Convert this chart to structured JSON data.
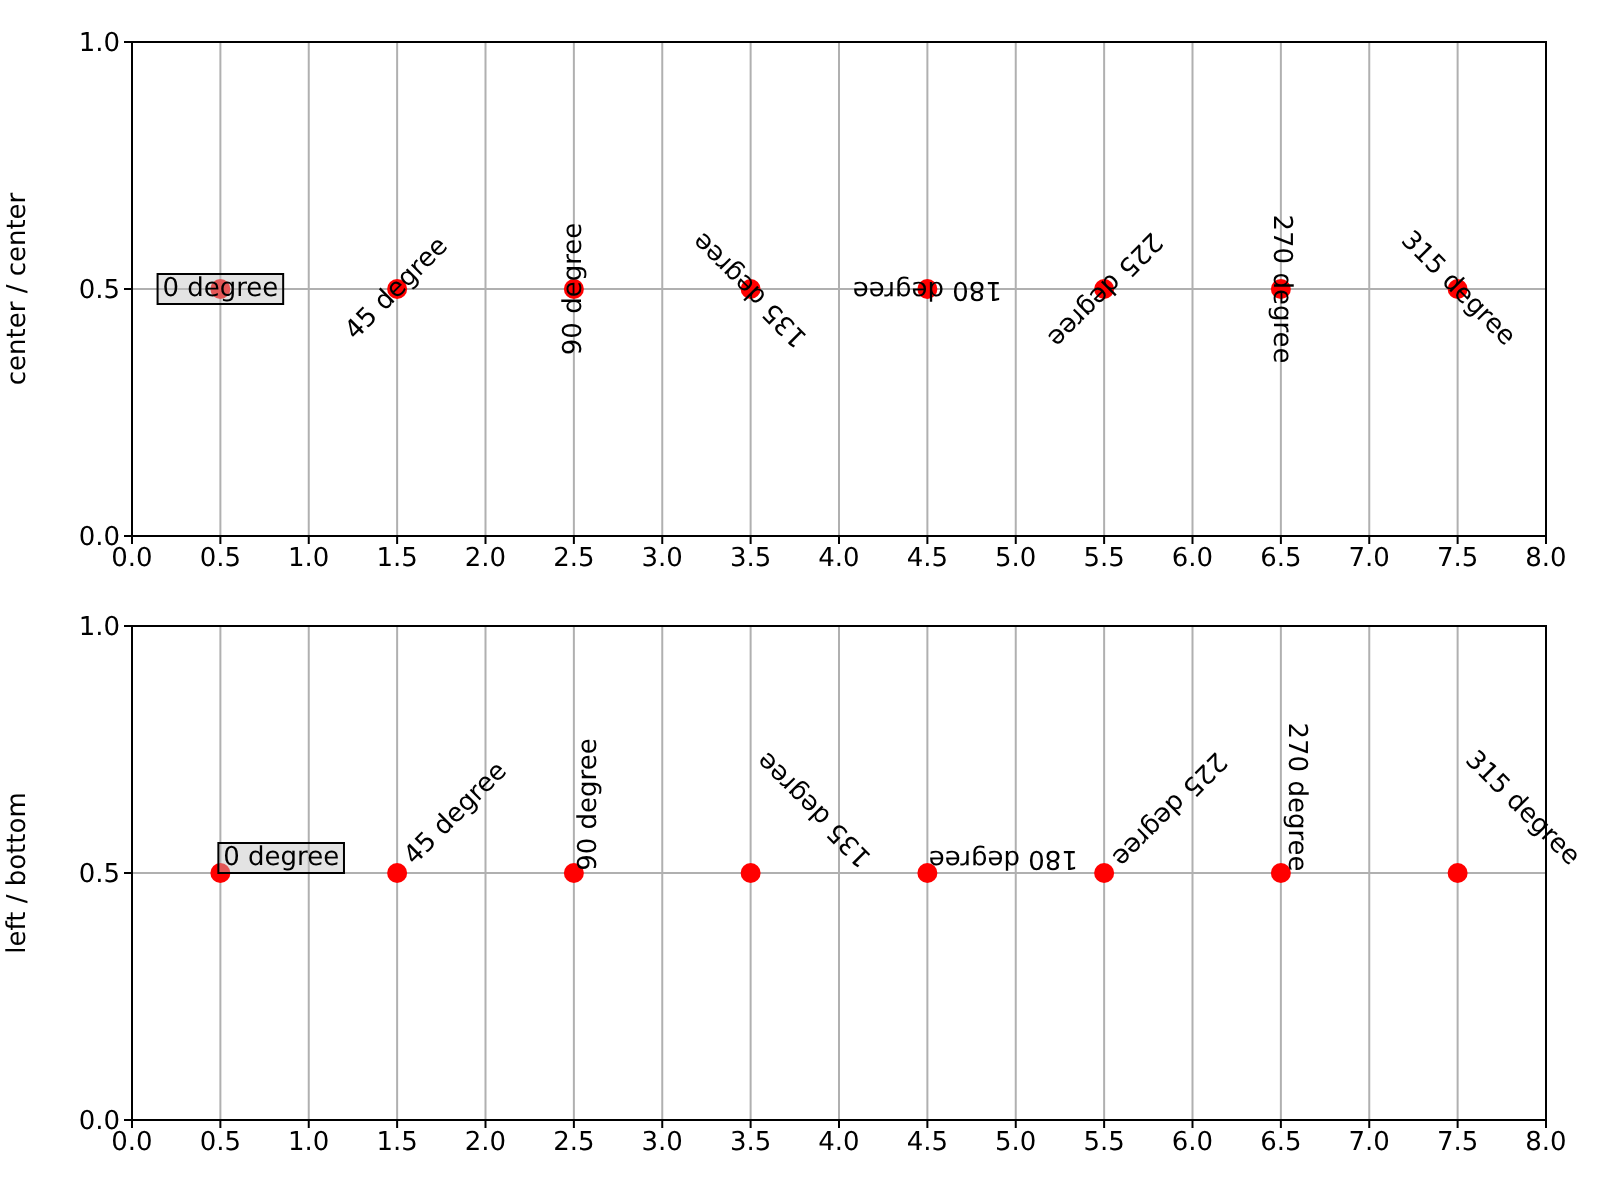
{
  "chart_data": [
    {
      "type": "scatter",
      "ylabel": "center / center",
      "x": [
        0.5,
        1.5,
        2.5,
        3.5,
        4.5,
        5.5,
        6.5,
        7.5
      ],
      "values": [
        0.5,
        0.5,
        0.5,
        0.5,
        0.5,
        0.5,
        0.5,
        0.5
      ],
      "color": "#ff0000",
      "marker": "circle",
      "grid": true,
      "xlim": [
        0,
        8
      ],
      "xticks": [
        {
          "value": 0,
          "label": "0.0"
        },
        {
          "value": 0.5,
          "label": "0.5"
        },
        {
          "value": 1,
          "label": "1.0"
        },
        {
          "value": 1.5,
          "label": "1.5"
        },
        {
          "value": 2,
          "label": "2.0"
        },
        {
          "value": 2.5,
          "label": "2.5"
        },
        {
          "value": 3,
          "label": "3.0"
        },
        {
          "value": 3.5,
          "label": "3.5"
        },
        {
          "value": 4,
          "label": "4.0"
        },
        {
          "value": 4.5,
          "label": "4.5"
        },
        {
          "value": 5,
          "label": "5.0"
        },
        {
          "value": 5.5,
          "label": "5.5"
        },
        {
          "value": 6,
          "label": "6.0"
        },
        {
          "value": 6.5,
          "label": "6.5"
        },
        {
          "value": 7,
          "label": "7.0"
        },
        {
          "value": 7.5,
          "label": "7.5"
        },
        {
          "value": 8,
          "label": "8.0"
        }
      ],
      "ylim": [
        0,
        1
      ],
      "yticks": [
        {
          "value": 0,
          "label": "0.0"
        },
        {
          "value": 0.5,
          "label": "0.5"
        },
        {
          "value": 1,
          "label": "1.0"
        }
      ],
      "annotations": [
        {
          "text": "0 degree",
          "x": 0.5,
          "y": 0.5
        },
        {
          "text": "45 degree",
          "x": 1.5,
          "y": 0.5
        },
        {
          "text": "90 degree",
          "x": 2.5,
          "y": 0.5
        },
        {
          "text": "135 degree",
          "x": 3.5,
          "y": 0.5
        },
        {
          "text": "180 degree",
          "x": 4.5,
          "y": 0.5
        },
        {
          "text": "225 degree",
          "x": 5.5,
          "y": 0.5
        },
        {
          "text": "270 degree",
          "x": 6.5,
          "y": 0.5
        },
        {
          "text": "315 degree",
          "x": 7.5,
          "y": 0.5
        }
      ]
    },
    {
      "type": "scatter",
      "ylabel": "left / bottom",
      "x": [
        0.5,
        1.5,
        2.5,
        3.5,
        4.5,
        5.5,
        6.5,
        7.5
      ],
      "values": [
        0.5,
        0.5,
        0.5,
        0.5,
        0.5,
        0.5,
        0.5,
        0.5
      ],
      "color": "#ff0000",
      "marker": "circle",
      "grid": true,
      "xlim": [
        0,
        8
      ],
      "xticks": [
        {
          "value": 0,
          "label": "0.0"
        },
        {
          "value": 0.5,
          "label": "0.5"
        },
        {
          "value": 1,
          "label": "1.0"
        },
        {
          "value": 1.5,
          "label": "1.5"
        },
        {
          "value": 2,
          "label": "2.0"
        },
        {
          "value": 2.5,
          "label": "2.5"
        },
        {
          "value": 3,
          "label": "3.0"
        },
        {
          "value": 3.5,
          "label": "3.5"
        },
        {
          "value": 4,
          "label": "4.0"
        },
        {
          "value": 4.5,
          "label": "4.5"
        },
        {
          "value": 5,
          "label": "5.0"
        },
        {
          "value": 5.5,
          "label": "5.5"
        },
        {
          "value": 6,
          "label": "6.0"
        },
        {
          "value": 6.5,
          "label": "6.5"
        },
        {
          "value": 7,
          "label": "7.0"
        },
        {
          "value": 7.5,
          "label": "7.5"
        },
        {
          "value": 8,
          "label": "8.0"
        }
      ],
      "ylim": [
        0,
        1
      ],
      "yticks": [
        {
          "value": 0,
          "label": "0.0"
        },
        {
          "value": 0.5,
          "label": "0.5"
        },
        {
          "value": 1,
          "label": "1.0"
        }
      ],
      "annotations": [
        {
          "text": "0 degree",
          "x": 0.5,
          "y": 0.5
        },
        {
          "text": "45 degree",
          "x": 1.5,
          "y": 0.5
        },
        {
          "text": "90 degree",
          "x": 2.5,
          "y": 0.5
        },
        {
          "text": "135 degree",
          "x": 3.5,
          "y": 0.5
        },
        {
          "text": "180 degree",
          "x": 4.5,
          "y": 0.5
        },
        {
          "text": "225 degree",
          "x": 5.5,
          "y": 0.5
        },
        {
          "text": "270 degree",
          "x": 6.5,
          "y": 0.5
        },
        {
          "text": "315 degree",
          "x": 7.5,
          "y": 0.5
        }
      ]
    }
  ]
}
